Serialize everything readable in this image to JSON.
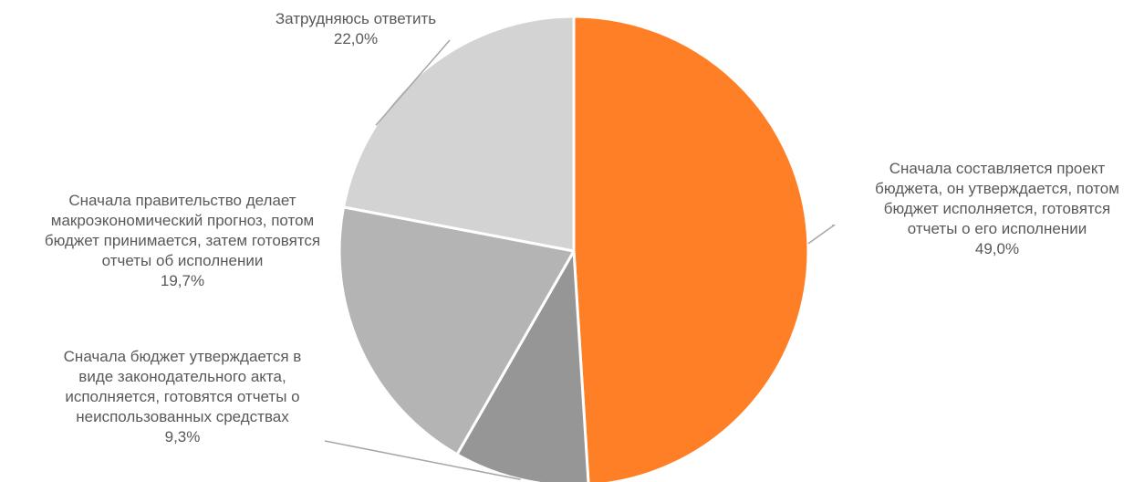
{
  "chart_data": {
    "type": "pie",
    "title": "",
    "start_angle_deg": 0,
    "direction": "clockwise",
    "slices": [
      {
        "label_lines": [
          "Сначала составляется проект",
          "бюджета, он утверждается, потом",
          "бюджет исполняется, готовятся",
          "отчеты о его исполнении"
        ],
        "value": 49.0,
        "value_label": "49,0%",
        "color": "#FF7F27"
      },
      {
        "label_lines": [
          "Сначала бюджет утверждается в",
          "виде законодательного акта,",
          "исполняется, готовятся отчеты о",
          "неиспользованных средствах"
        ],
        "value": 9.3,
        "value_label": "9,3%",
        "color": "#969696"
      },
      {
        "label_lines": [
          "Сначала правительство делает",
          "макроэкономический прогноз, потом",
          "бюджет принимается, затем готовятся",
          "отчеты об исполнении"
        ],
        "value": 19.7,
        "value_label": "19,7%",
        "color": "#B4B4B4"
      },
      {
        "label_lines": [
          "Затрудняюсь ответить"
        ],
        "value": 22.0,
        "value_label": "22,0%",
        "color": "#D3D3D3"
      }
    ]
  }
}
